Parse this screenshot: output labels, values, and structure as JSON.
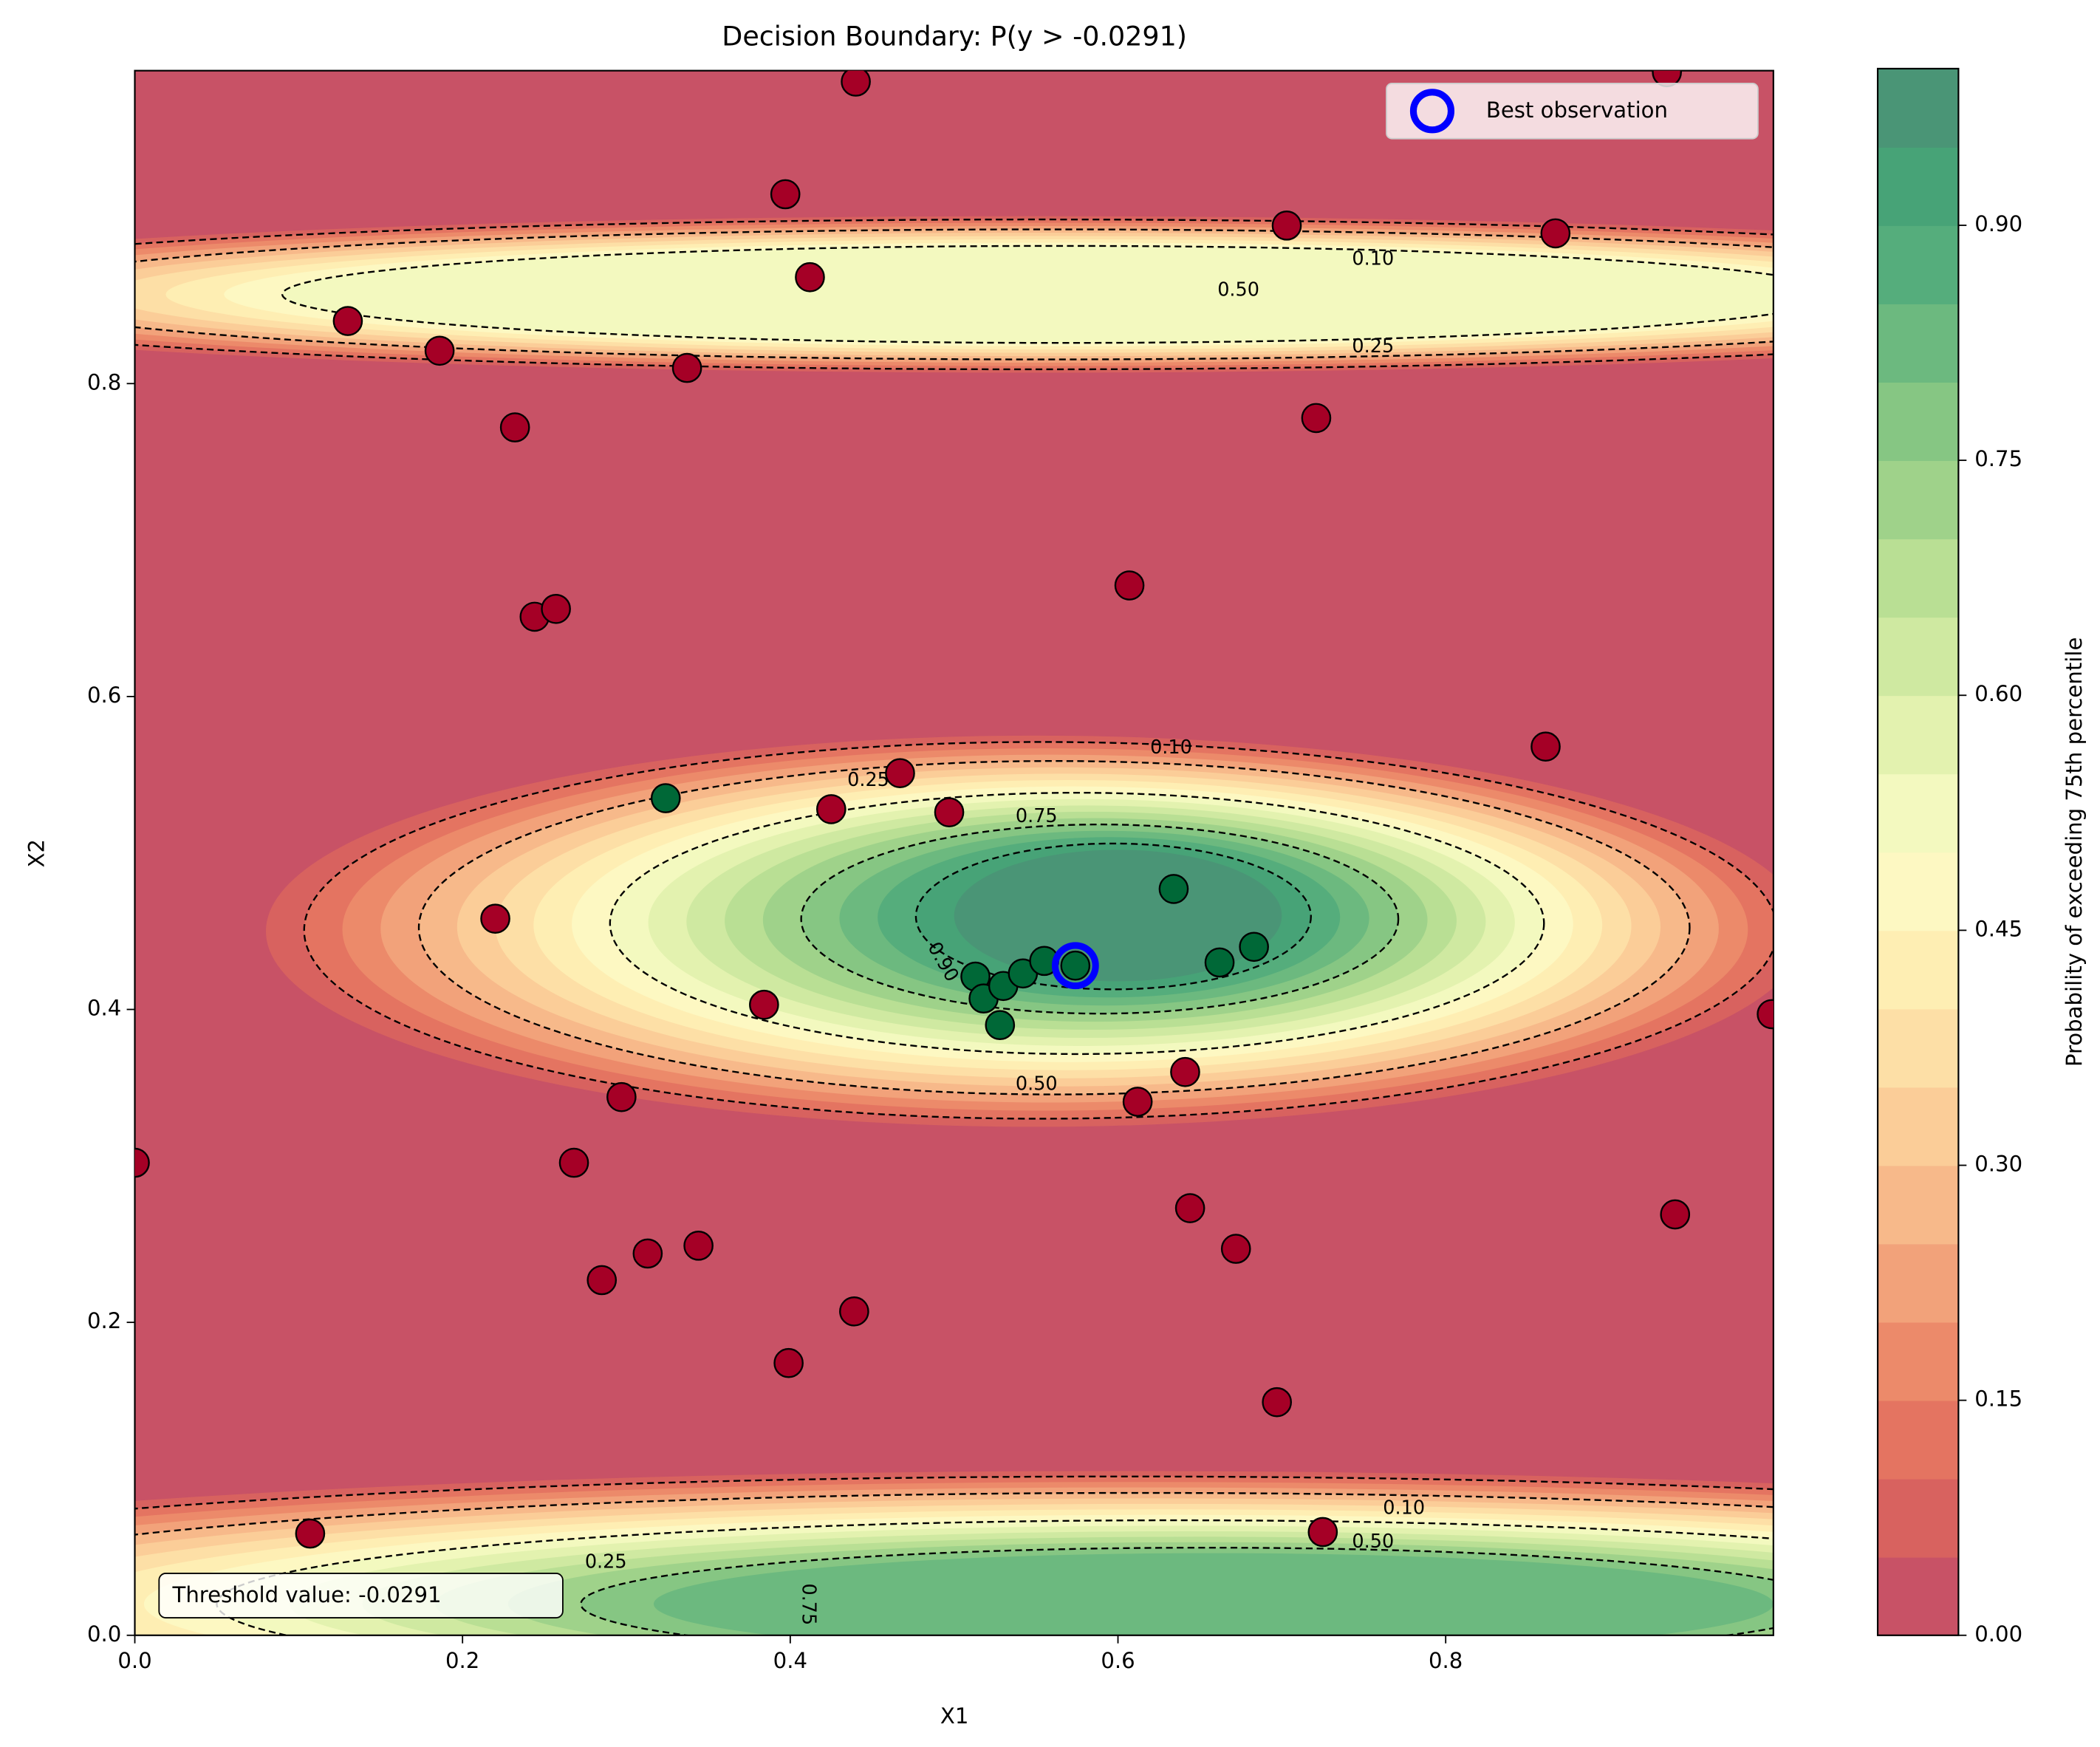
{
  "chart_data": {
    "type": "scatter",
    "title": "Decision Boundary: P(y > -0.0291)",
    "x_label": "X1",
    "y_label": "X2",
    "xlim": [
      0,
      1
    ],
    "ylim": [
      0,
      1
    ],
    "xticks": [
      {
        "value": 0,
        "label": "0.0"
      },
      {
        "value": 0.2,
        "label": "0.2"
      },
      {
        "value": 0.4,
        "label": "0.4"
      },
      {
        "value": 0.6,
        "label": "0.6"
      },
      {
        "value": 0.8,
        "label": "0.8"
      }
    ],
    "yticks": [
      {
        "value": 0,
        "label": "0.0"
      },
      {
        "value": 0.2,
        "label": "0.2"
      },
      {
        "value": 0.4,
        "label": "0.4"
      },
      {
        "value": 0.6,
        "label": "0.6"
      },
      {
        "value": 0.8,
        "label": "0.8"
      }
    ],
    "series": [
      {
        "color": "#a50026",
        "x": [
          0.44,
          0.397,
          0.703,
          0.867,
          0.935,
          0.412,
          0.13,
          0.186,
          0.337,
          0.232,
          0.721,
          0.244,
          0.257,
          0.607,
          0.861,
          0.467,
          0.425,
          0.497,
          0.22,
          0.384,
          0.999,
          0.641,
          0.612,
          0.297,
          0.0,
          0.268,
          0.644,
          0.94,
          0.672,
          0.344,
          0.313,
          0.285,
          0.439,
          0.399,
          0.697,
          0.107,
          0.725
        ],
        "y": [
          0.993,
          0.921,
          0.901,
          0.896,
          0.999,
          0.868,
          0.84,
          0.821,
          0.81,
          0.772,
          0.778,
          0.651,
          0.656,
          0.671,
          0.568,
          0.551,
          0.528,
          0.526,
          0.458,
          0.403,
          0.397,
          0.36,
          0.341,
          0.344,
          0.302,
          0.302,
          0.273,
          0.269,
          0.247,
          0.249,
          0.244,
          0.227,
          0.207,
          0.174,
          0.149,
          0.065,
          0.066
        ]
      },
      {
        "color": "#006837",
        "x": [
          0.324,
          0.634,
          0.662,
          0.683,
          0.513,
          0.518,
          0.53,
          0.542,
          0.555,
          0.574,
          0.528
        ],
        "y": [
          0.535,
          0.477,
          0.43,
          0.44,
          0.421,
          0.407,
          0.415,
          0.423,
          0.431,
          0.428,
          0.39
        ]
      },
      {
        "name": "Best observation",
        "color": "#0000ff",
        "x": [
          0.574
        ],
        "y": [
          0.428
        ]
      }
    ],
    "contour_labels": [
      {
        "value": 0.1,
        "label": "0.10"
      },
      {
        "value": 0.5,
        "label": "0.50"
      },
      {
        "value": 0.25,
        "label": "0.25"
      },
      {
        "value": 0.1,
        "label": "0.10"
      },
      {
        "value": 0.25,
        "label": "0.25"
      },
      {
        "value": 0.75,
        "label": "0.75"
      },
      {
        "value": 0.9,
        "label": "0.90"
      },
      {
        "value": 0.5,
        "label": "0.50"
      },
      {
        "value": 0.1,
        "label": "0.10"
      },
      {
        "value": 0.5,
        "label": "0.50"
      },
      {
        "value": 0.25,
        "label": "0.25"
      },
      {
        "value": 0.75,
        "label": "0.75"
      }
    ],
    "annotation": "Threshold value: -0.0291",
    "legend_position": "upper right",
    "colorbar": {
      "label": "Probability of exceeding 75th percentile",
      "lim": [
        0,
        1
      ],
      "ticks": [
        {
          "value": 0,
          "label": "0.00"
        },
        {
          "value": 0.15,
          "label": "0.15"
        },
        {
          "value": 0.3,
          "label": "0.30"
        },
        {
          "value": 0.45,
          "label": "0.45"
        },
        {
          "value": 0.6,
          "label": "0.60"
        },
        {
          "value": 0.75,
          "label": "0.75"
        },
        {
          "value": 0.9,
          "label": "0.90"
        }
      ],
      "colors": [
        "#c85266",
        "#d8625f",
        "#e47461",
        "#ec8a6a",
        "#f2a27a",
        "#f7b98a",
        "#fbcd98",
        "#fddfa6",
        "#feeeb3",
        "#fdf8c2",
        "#f3f9bf",
        "#e3f2af",
        "#cfe9a1",
        "#b9df94",
        "#9fd28a",
        "#86c683",
        "#6cb97f",
        "#55ad7c",
        "#47a377",
        "#4a9576"
      ]
    }
  }
}
